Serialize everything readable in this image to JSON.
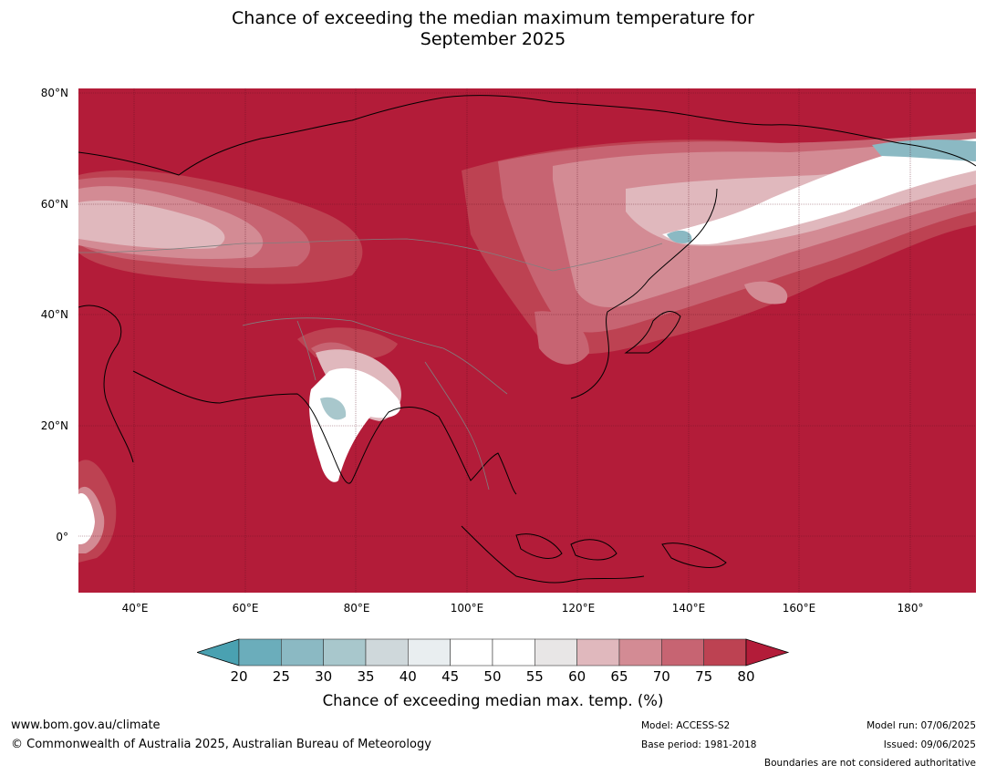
{
  "title_line1": "Chance of exceeding the median maximum temperature for",
  "title_line2": "September 2025",
  "lat_labels": [
    "80°N",
    "60°N",
    "40°N",
    "20°N",
    "0°"
  ],
  "lon_labels": [
    "40°E",
    "60°E",
    "80°E",
    "100°E",
    "120°E",
    "140°E",
    "160°E",
    "180°"
  ],
  "colorbar": {
    "ticks": [
      "20",
      "25",
      "30",
      "35",
      "40",
      "45",
      "50",
      "55",
      "60",
      "65",
      "70",
      "75",
      "80"
    ],
    "colors": [
      "#4aa1b1",
      "#6badbb",
      "#8bb9c3",
      "#a8c7cc",
      "#cfd8db",
      "#e9eef0",
      "#ffffff",
      "#ffffff",
      "#e8e6e6",
      "#e0b8bd",
      "#d38b94",
      "#c76472",
      "#bd4252",
      "#b31c39"
    ],
    "label": "Chance of exceeding median max. temp. (%)"
  },
  "footer": {
    "url": "www.bom.gov.au/climate",
    "copyright": "© Commonwealth of Australia 2025, Australian Bureau of Meteorology",
    "model": "Model: ACCESS-S2",
    "base_period": "Base period: 1981-2018",
    "model_run": "Model run: 07/06/2025",
    "issued": "Issued: 09/06/2025",
    "boundaries": "Boundaries are not considered authoritative"
  }
}
